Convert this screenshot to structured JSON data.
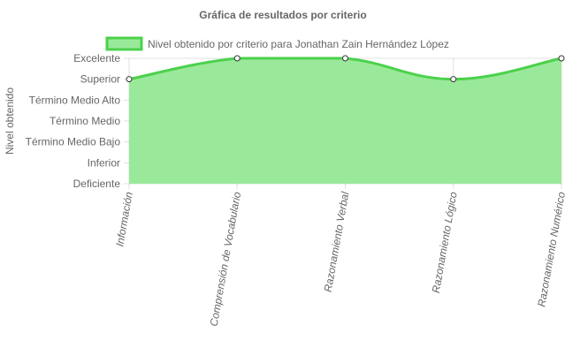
{
  "chart_data": {
    "type": "area",
    "title": "Gráfica de resultados por criterio",
    "ylabel": "Nivel obtenido",
    "xlabel": "",
    "categories": [
      "Información",
      "Comprensión de Vocabulario",
      "Razonamiento Verbal",
      "Razonamiento Lógico",
      "Razonamiento Numérico"
    ],
    "y_levels": [
      "Deficiente",
      "Inferior",
      "Término Medio Bajo",
      "Término Medio",
      "Término Medio Alto",
      "Superior",
      "Excelente"
    ],
    "ylim": [
      0,
      6
    ],
    "series": [
      {
        "name": "Nivel obtenido por criterio para Jonathan Zain Hernández López",
        "values": [
          5,
          6,
          6,
          5,
          6
        ],
        "fill_color": "#9ae99a",
        "line_color": "#4cd14c"
      }
    ],
    "legend_position": "top",
    "grid": true
  }
}
